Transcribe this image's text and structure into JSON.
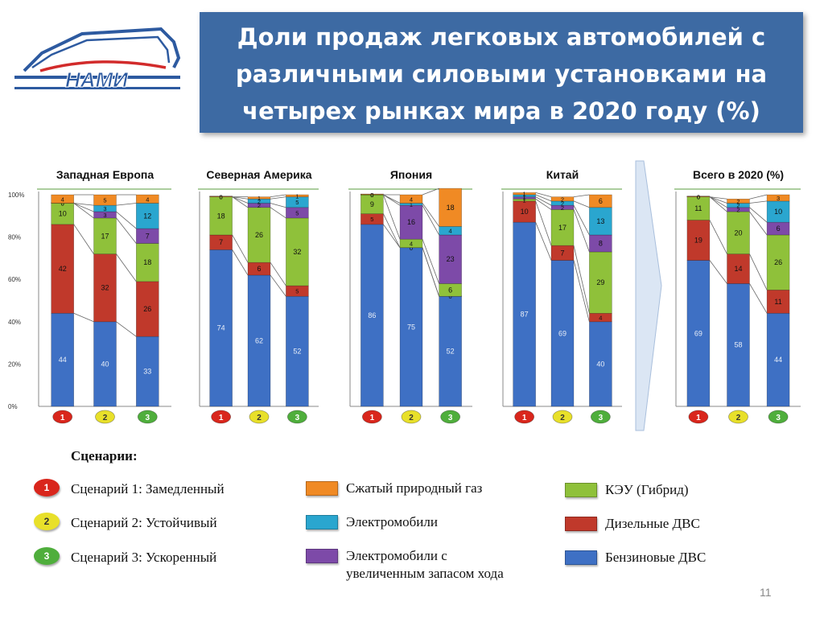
{
  "title": "Доли продаж легковых автомобилей с\nразличными силовыми установками на\nчетырех рынках мира в 2020 году (%)",
  "logo_text": "НАМИ",
  "colors": {
    "title_bg": "#3d6aa3",
    "gasoline": "#3e70c4",
    "diesel": "#c0392b",
    "hybrid": "#8fc13a",
    "erev": "#7d4aa8",
    "ev": "#2aa6cf",
    "cng": "#f08a24",
    "scenario_1": "#d9261c",
    "scenario_2": "#e8e02a",
    "scenario_3": "#4fae3c"
  },
  "legend_heading": "Сценарии:",
  "scenarios": [
    {
      "num": "1",
      "label": "Сценарий 1: Замедленный"
    },
    {
      "num": "2",
      "label": "Сценарий 2: Устойчивый"
    },
    {
      "num": "3",
      "label": "Сценарий 3: Ускоренный"
    }
  ],
  "legend": {
    "cng": "Сжатый природный газ",
    "ev": "Электромобили",
    "erev_line1": "Электромобили с",
    "erev_line2": "увеличенным запасом хода",
    "hybrid": "КЭУ (Гибрид)",
    "diesel": "Дизельные ДВС",
    "gasoline": "Бензиновые ДВС"
  },
  "page_number": "11",
  "chart_data": {
    "type": "bar",
    "stacked": true,
    "y_tick_labels": [
      "0%",
      "20%",
      "40%",
      "60%",
      "80%",
      "100%"
    ],
    "ylim": [
      0,
      100
    ],
    "categories": [
      "1",
      "2",
      "3"
    ],
    "series_order": [
      "gasoline",
      "diesel",
      "hybrid",
      "erev",
      "ev",
      "cng"
    ],
    "panels": [
      {
        "title": "Западная Европа",
        "bars": [
          {
            "gasoline": 44,
            "diesel": 42,
            "hybrid": 10,
            "erev": 0,
            "ev": 0,
            "cng": 4
          },
          {
            "gasoline": 40,
            "diesel": 32,
            "hybrid": 17,
            "erev": 3,
            "ev": 3,
            "cng": 5
          },
          {
            "gasoline": 33,
            "diesel": 26,
            "hybrid": 18,
            "erev": 7,
            "ev": 12,
            "cng": 4
          }
        ]
      },
      {
        "title": "Северная Америка",
        "bars": [
          {
            "gasoline": 74,
            "diesel": 7,
            "hybrid": 18,
            "erev": 0,
            "ev": 0,
            "cng": 0
          },
          {
            "gasoline": 62,
            "diesel": 6,
            "hybrid": 26,
            "erev": 2,
            "ev": 2,
            "cng": 1
          },
          {
            "gasoline": 52,
            "diesel": 5,
            "hybrid": 32,
            "erev": 5,
            "ev": 5,
            "cng": 1
          }
        ]
      },
      {
        "title": "Япония",
        "bars": [
          {
            "gasoline": 86,
            "diesel": 5,
            "hybrid": 9,
            "erev": 0,
            "ev": 0,
            "cng": 0
          },
          {
            "gasoline": 75,
            "diesel": 0,
            "hybrid": 4,
            "erev": 16,
            "ev": 1,
            "cng": 4
          },
          {
            "gasoline": 52,
            "diesel": 0,
            "hybrid": 6,
            "erev": 23,
            "ev": 4,
            "cng": 18
          }
        ]
      },
      {
        "title": "Китай",
        "bars": [
          {
            "gasoline": 87,
            "diesel": 10,
            "hybrid": 1,
            "erev": 1,
            "ev": 1,
            "cng": 1
          },
          {
            "gasoline": 69,
            "diesel": 7,
            "hybrid": 17,
            "erev": 2,
            "ev": 2,
            "cng": 2
          },
          {
            "gasoline": 40,
            "diesel": 4,
            "hybrid": 29,
            "erev": 8,
            "ev": 13,
            "cng": 6
          }
        ]
      },
      {
        "title": "Всего в 2020 (%)",
        "bars": [
          {
            "gasoline": 69,
            "diesel": 19,
            "hybrid": 11,
            "erev": 0,
            "ev": 0,
            "cng": 0
          },
          {
            "gasoline": 58,
            "diesel": 14,
            "hybrid": 20,
            "erev": 2,
            "ev": 2,
            "cng": 2
          },
          {
            "gasoline": 44,
            "diesel": 11,
            "hybrid": 26,
            "erev": 6,
            "ev": 10,
            "cng": 3
          }
        ]
      }
    ]
  }
}
